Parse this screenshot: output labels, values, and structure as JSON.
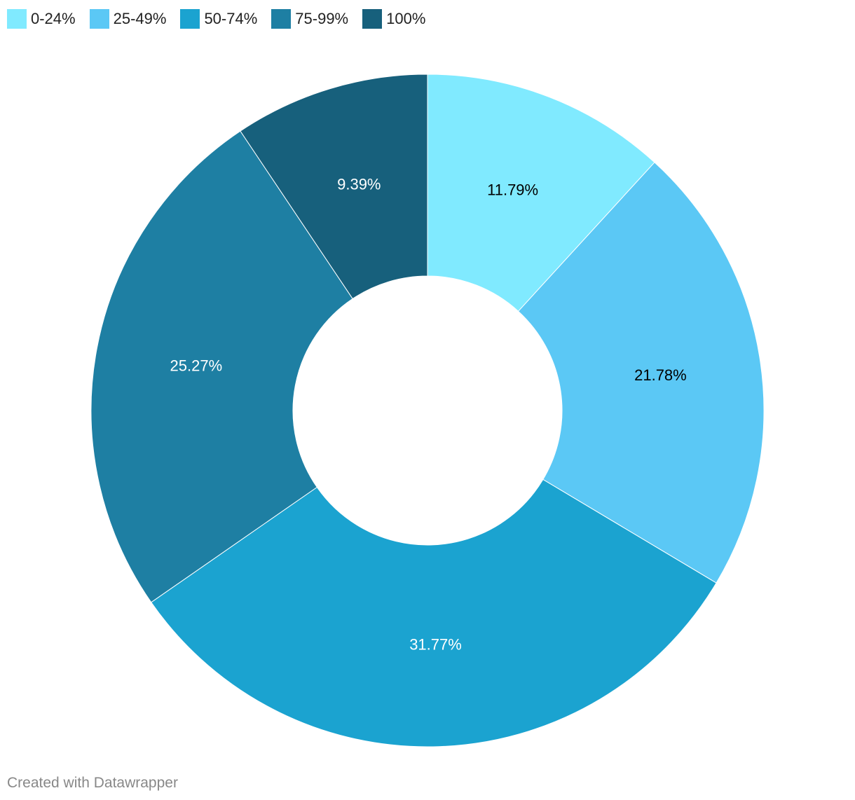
{
  "chart_data": {
    "type": "pie",
    "variant": "donut",
    "title": "",
    "categories": [
      "0-24%",
      "25-49%",
      "50-74%",
      "75-99%",
      "100%"
    ],
    "values": [
      11.79,
      21.78,
      31.77,
      25.27,
      9.39
    ],
    "value_labels": [
      "11.79%",
      "21.78%",
      "31.77%",
      "25.27%",
      "9.39%"
    ],
    "colors": [
      "#80eaff",
      "#5bc8f5",
      "#1ba3d0",
      "#1e7fa3",
      "#17607c"
    ],
    "label_colors": [
      "#000000",
      "#000000",
      "#ffffff",
      "#ffffff",
      "#ffffff"
    ],
    "legend_position": "top-left"
  },
  "footer": {
    "credit": "Created with Datawrapper"
  }
}
